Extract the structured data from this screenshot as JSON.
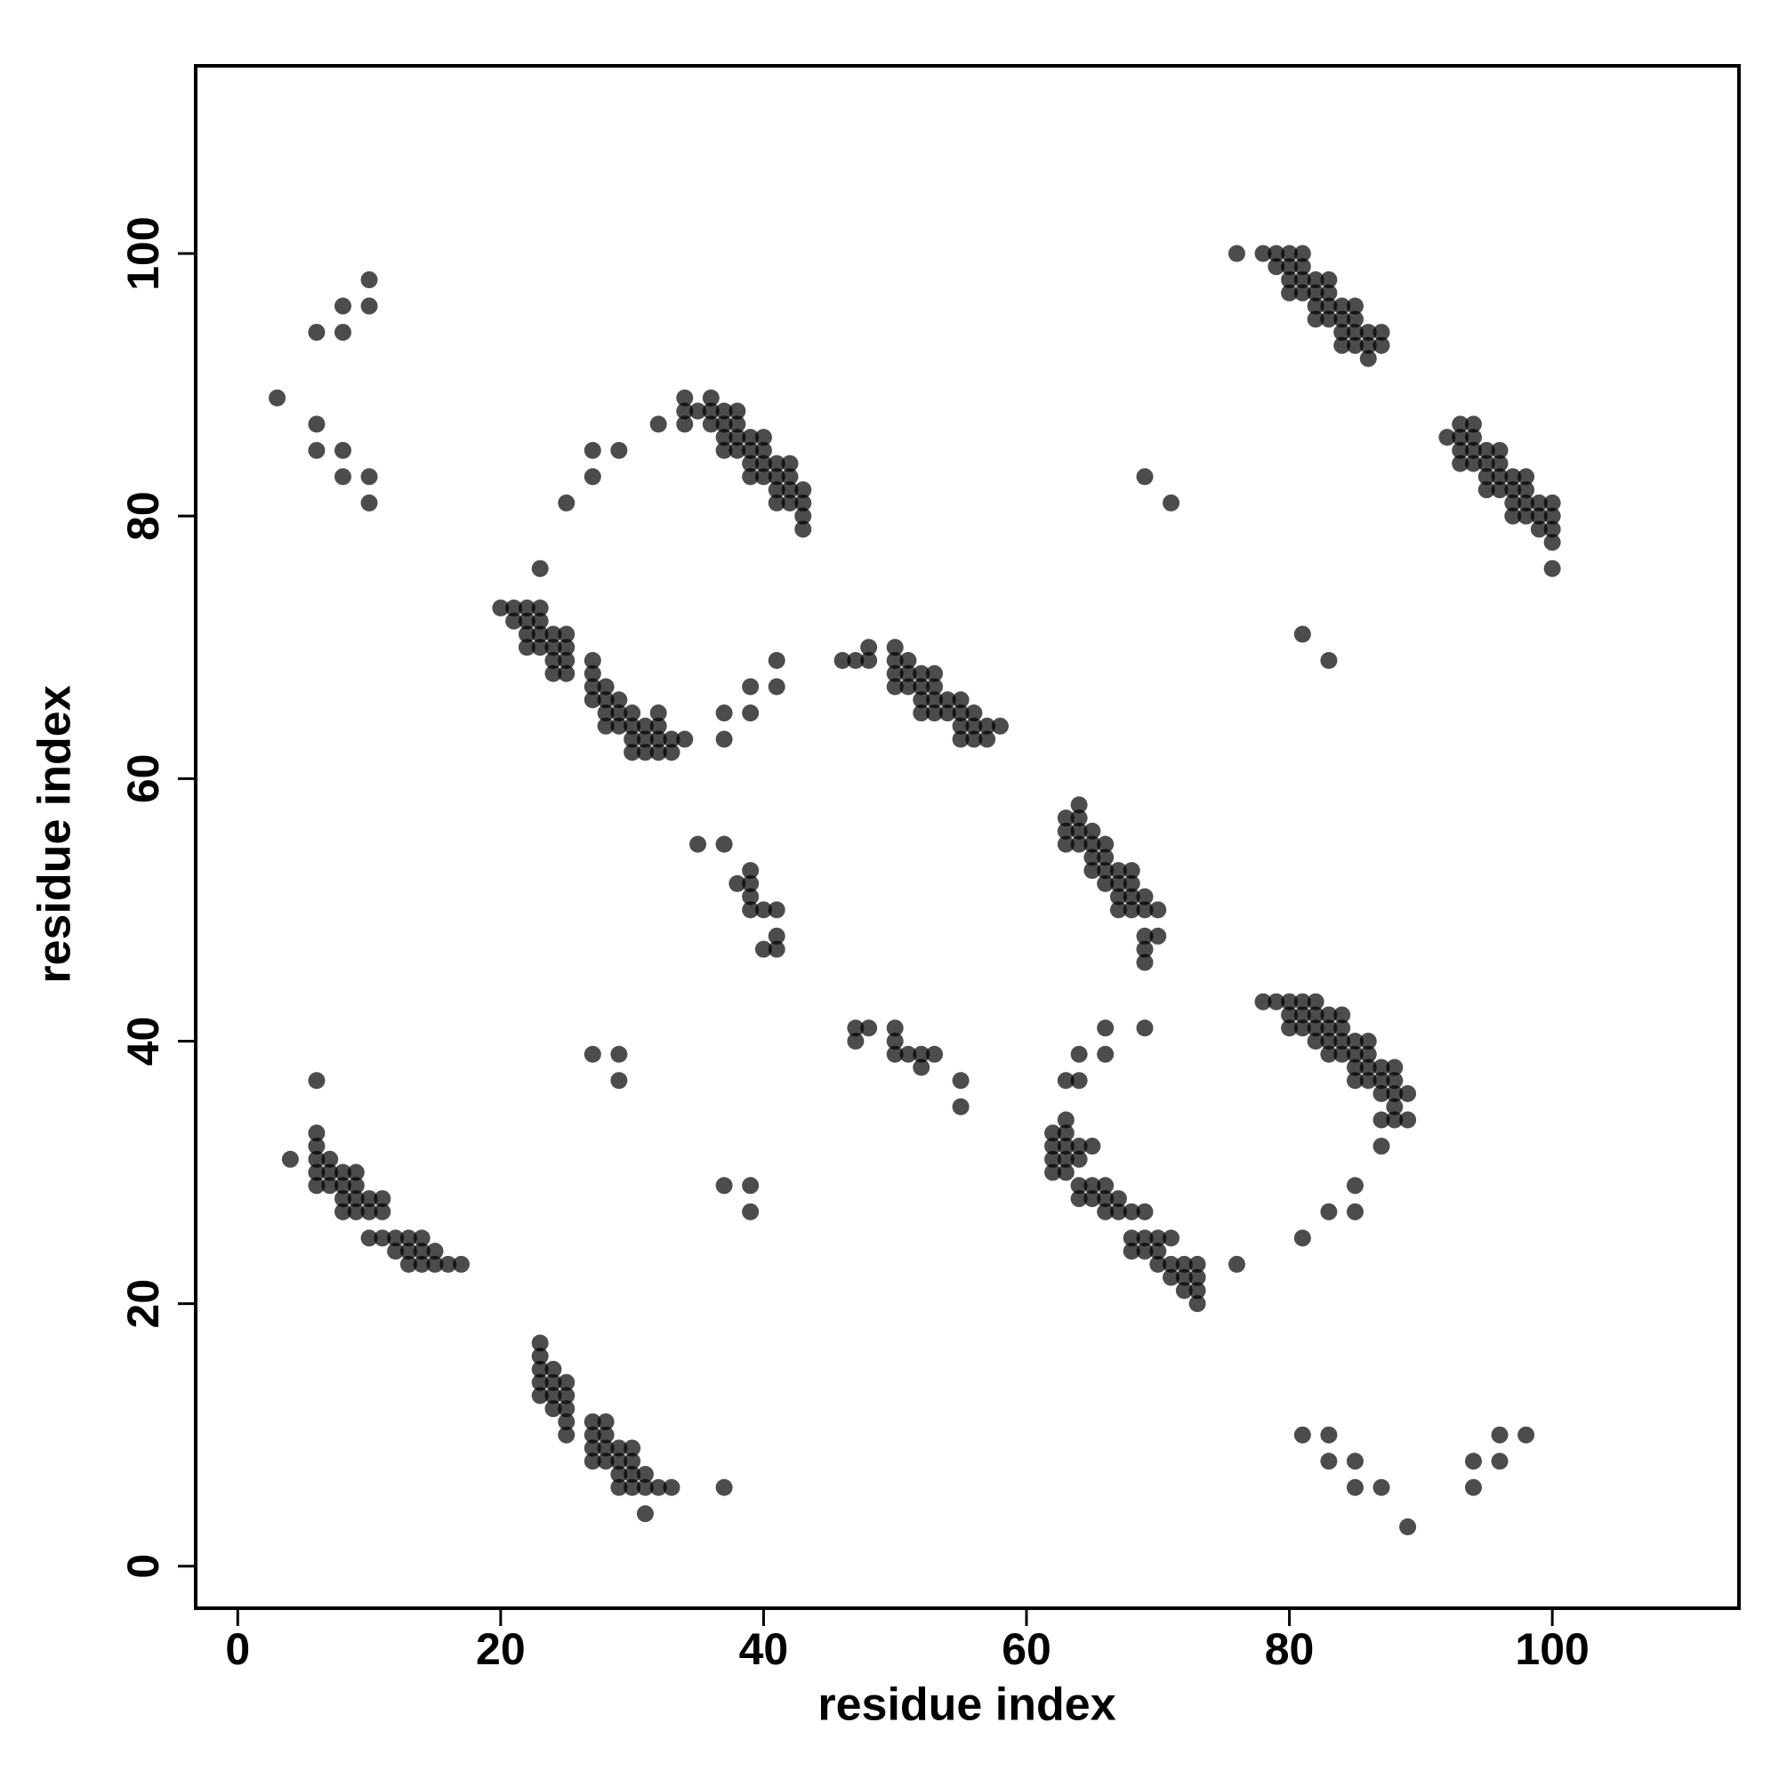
{
  "chart_data": {
    "type": "scatter",
    "xlabel": "residue index",
    "ylabel": "residue index",
    "xlim": [
      -3.2,
      114.2
    ],
    "ylim": [
      -3.2,
      114.3
    ],
    "xticks": [
      0,
      20,
      40,
      60,
      80,
      100
    ],
    "yticks": [
      0,
      20,
      40,
      60,
      80,
      100
    ],
    "series": [
      {
        "color": "#000000",
        "alpha": 0.7,
        "x": [
          3,
          6,
          8,
          8,
          10,
          10,
          6,
          6,
          8,
          8,
          10,
          10,
          20,
          21,
          21,
          22,
          22,
          22,
          22,
          23,
          23,
          23,
          23,
          24,
          24,
          24,
          24,
          25,
          25,
          25,
          25,
          27,
          27,
          27,
          27,
          28,
          28,
          28,
          28,
          29,
          29,
          29,
          30,
          30,
          30,
          30,
          31,
          31,
          31,
          32,
          32,
          32,
          32,
          33,
          33,
          34,
          23,
          25,
          27,
          27,
          29,
          32,
          37,
          37,
          39,
          39,
          41,
          41,
          34,
          34,
          34,
          35,
          36,
          36,
          36,
          37,
          37,
          37,
          37,
          38,
          38,
          38,
          38,
          39,
          39,
          39,
          39,
          40,
          40,
          40,
          40,
          41,
          41,
          41,
          41,
          42,
          42,
          42,
          42,
          43,
          43,
          43,
          43,
          35,
          37,
          38,
          39,
          39,
          39,
          39,
          40,
          40,
          41,
          41,
          41,
          46,
          47,
          48,
          48,
          50,
          50,
          50,
          50,
          51,
          51,
          51,
          52,
          52,
          52,
          52,
          53,
          53,
          53,
          53,
          54,
          54,
          55,
          55,
          55,
          55,
          56,
          56,
          56,
          57,
          57,
          58,
          47,
          47,
          48,
          50,
          50,
          50,
          51,
          52,
          52,
          53,
          55,
          55,
          63,
          63,
          63,
          64,
          64,
          64,
          64,
          65,
          65,
          65,
          65,
          66,
          66,
          66,
          66,
          67,
          67,
          67,
          67,
          68,
          68,
          68,
          68,
          69,
          69,
          69,
          69,
          69,
          70,
          70,
          62,
          62,
          62,
          62,
          63,
          63,
          63,
          63,
          63,
          64,
          64,
          64,
          64,
          65,
          65,
          65,
          66,
          66,
          66,
          67,
          67,
          68,
          68,
          68,
          69,
          69,
          69,
          70,
          70,
          70,
          71,
          71,
          71,
          72,
          72,
          72,
          73,
          73,
          73,
          73,
          63,
          64,
          64,
          66,
          66,
          69,
          76,
          78,
          79,
          80,
          80,
          80,
          81,
          81,
          81,
          82,
          82,
          82,
          82,
          83,
          83,
          83,
          83,
          84,
          84,
          84,
          84,
          85,
          85,
          85,
          85,
          86,
          86,
          86,
          86,
          87,
          87,
          87,
          87,
          87,
          88,
          88,
          88,
          88,
          88,
          89,
          89,
          81,
          83,
          85,
          85,
          76,
          78,
          79,
          79,
          80,
          80,
          80,
          80,
          81,
          81,
          81,
          81,
          82,
          82,
          82,
          82,
          83,
          83,
          83,
          83,
          84,
          84,
          84,
          84,
          85,
          85,
          85,
          85,
          86,
          86,
          86,
          87,
          87,
          92,
          93,
          93,
          93,
          93,
          94,
          94,
          94,
          94,
          95,
          95,
          95,
          95,
          96,
          96,
          96,
          96,
          97,
          97,
          97,
          97,
          98,
          98,
          98,
          98,
          99,
          99,
          99,
          100,
          100,
          100,
          100,
          100,
          69,
          71,
          81,
          83,
          4,
          6,
          6,
          6,
          6,
          6,
          6,
          7,
          7,
          7,
          8,
          8,
          8,
          8,
          9,
          9,
          9,
          9,
          10,
          10,
          10,
          11,
          11,
          11,
          12,
          12,
          13,
          13,
          13,
          14,
          14,
          14,
          15,
          15,
          16,
          17,
          27,
          29,
          29,
          37,
          39,
          39,
          23,
          23,
          23,
          23,
          23,
          24,
          24,
          24,
          24,
          25,
          25,
          25,
          25,
          25,
          27,
          27,
          27,
          27,
          28,
          28,
          28,
          28,
          29,
          29,
          29,
          29,
          30,
          30,
          30,
          30,
          31,
          31,
          31,
          32,
          33,
          37,
          81,
          83,
          83,
          85,
          85,
          87,
          89,
          94,
          94,
          96,
          96,
          98
        ],
        "y": [
          89,
          94,
          96,
          94,
          98,
          96,
          87,
          85,
          85,
          83,
          83,
          81,
          73,
          73,
          72,
          73,
          72,
          71,
          70,
          73,
          72,
          71,
          70,
          71,
          70,
          69,
          68,
          71,
          70,
          69,
          68,
          69,
          68,
          67,
          66,
          67,
          66,
          65,
          64,
          66,
          65,
          64,
          65,
          64,
          63,
          62,
          64,
          63,
          62,
          65,
          64,
          63,
          62,
          63,
          62,
          63,
          76,
          81,
          83,
          85,
          85,
          87,
          65,
          63,
          67,
          65,
          69,
          67,
          89,
          88,
          87,
          88,
          89,
          88,
          87,
          88,
          87,
          86,
          85,
          88,
          87,
          86,
          85,
          86,
          85,
          84,
          83,
          86,
          85,
          84,
          83,
          84,
          83,
          82,
          81,
          84,
          83,
          82,
          81,
          82,
          81,
          80,
          79,
          55,
          55,
          52,
          53,
          52,
          51,
          50,
          50,
          47,
          50,
          48,
          47,
          69,
          69,
          70,
          69,
          70,
          69,
          68,
          67,
          69,
          68,
          67,
          68,
          67,
          66,
          65,
          68,
          67,
          66,
          65,
          66,
          65,
          66,
          65,
          64,
          63,
          65,
          64,
          63,
          64,
          63,
          64,
          41,
          40,
          41,
          41,
          40,
          39,
          39,
          39,
          38,
          39,
          37,
          35,
          57,
          56,
          55,
          58,
          57,
          56,
          55,
          56,
          55,
          54,
          53,
          55,
          54,
          53,
          52,
          53,
          52,
          51,
          50,
          53,
          52,
          51,
          50,
          51,
          50,
          48,
          47,
          46,
          50,
          48,
          33,
          32,
          31,
          30,
          34,
          33,
          32,
          31,
          30,
          32,
          31,
          29,
          28,
          32,
          29,
          28,
          29,
          28,
          27,
          28,
          27,
          27,
          25,
          24,
          27,
          25,
          24,
          25,
          24,
          23,
          25,
          23,
          22,
          23,
          22,
          21,
          23,
          22,
          21,
          20,
          37,
          39,
          37,
          41,
          39,
          41,
          23,
          43,
          43,
          43,
          42,
          41,
          43,
          42,
          41,
          43,
          42,
          41,
          40,
          42,
          41,
          40,
          39,
          42,
          41,
          40,
          39,
          40,
          39,
          38,
          37,
          40,
          39,
          38,
          37,
          38,
          37,
          36,
          34,
          32,
          38,
          37,
          36,
          35,
          34,
          36,
          34,
          25,
          27,
          29,
          27,
          100,
          100,
          100,
          99,
          100,
          99,
          98,
          97,
          100,
          99,
          98,
          97,
          98,
          97,
          96,
          95,
          98,
          97,
          96,
          95,
          96,
          95,
          94,
          93,
          96,
          95,
          94,
          93,
          94,
          93,
          92,
          94,
          93,
          86,
          87,
          86,
          85,
          84,
          87,
          86,
          85,
          84,
          85,
          84,
          83,
          82,
          85,
          84,
          83,
          82,
          83,
          82,
          81,
          80,
          83,
          82,
          81,
          80,
          81,
          80,
          79,
          81,
          80,
          79,
          78,
          76,
          83,
          81,
          71,
          69,
          31,
          37,
          33,
          32,
          31,
          30,
          29,
          31,
          30,
          29,
          30,
          29,
          28,
          27,
          30,
          29,
          28,
          27,
          28,
          27,
          25,
          28,
          27,
          25,
          25,
          24,
          25,
          24,
          23,
          25,
          24,
          23,
          24,
          23,
          23,
          23,
          39,
          39,
          37,
          29,
          29,
          27,
          17,
          16,
          15,
          14,
          13,
          15,
          14,
          13,
          12,
          14,
          13,
          12,
          11,
          10,
          11,
          10,
          9,
          8,
          11,
          10,
          9,
          8,
          9,
          8,
          7,
          6,
          9,
          8,
          7,
          6,
          7,
          6,
          4,
          6,
          6,
          6,
          10,
          10,
          8,
          8,
          6,
          6,
          3,
          8,
          6,
          10,
          8,
          10
        ]
      }
    ]
  }
}
